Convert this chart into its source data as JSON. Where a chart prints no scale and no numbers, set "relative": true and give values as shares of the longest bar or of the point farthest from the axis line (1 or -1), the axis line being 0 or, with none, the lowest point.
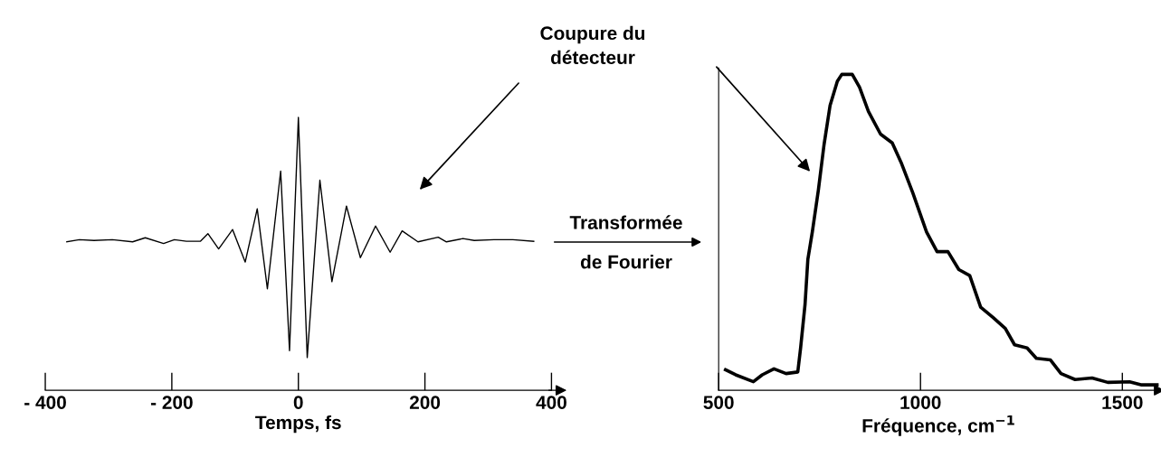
{
  "chart_data": [
    {
      "type": "line",
      "relative": true,
      "xlim": [
        -400,
        400
      ],
      "xticks": [
        {
          "value": -400,
          "label": "- 400"
        },
        {
          "value": -200,
          "label": "- 200"
        },
        0,
        200,
        400
      ],
      "xlabel": "Temps, fs",
      "tick_labels": "x",
      "series": [
        {
          "color": "#000000",
          "x": [
            -366,
            -346,
            -323,
            -294,
            -262,
            -242,
            -213,
            -196,
            -177,
            -155,
            -143,
            -126,
            -104,
            -84,
            -65,
            -49,
            -28,
            -14,
            0,
            14,
            34,
            53,
            76,
            98,
            122,
            145,
            164,
            189,
            221,
            234,
            260,
            278,
            309,
            339,
            372
          ],
          "values": [
            0.544,
            0.552,
            0.549,
            0.552,
            0.544,
            0.559,
            0.538,
            0.552,
            0.546,
            0.546,
            0.574,
            0.518,
            0.589,
            0.47,
            0.665,
            0.372,
            0.803,
            0.145,
            1.0,
            0.12,
            0.77,
            0.398,
            0.675,
            0.486,
            0.602,
            0.506,
            0.584,
            0.544,
            0.561,
            0.544,
            0.556,
            0.549,
            0.552,
            0.552,
            0.546
          ]
        }
      ],
      "annotations": [
        "Coupure du\ndétecteur",
        "Transformée\nde Fourier"
      ]
    },
    {
      "type": "line",
      "relative": true,
      "xlim": [
        500,
        1590
      ],
      "xticks": [
        500,
        1000,
        1500
      ],
      "xlabel": "Fréquence, cm$^{−1}$",
      "tick_labels": "x",
      "series": [
        {
          "color": "#000000",
          "x": [
            517,
            542,
            586,
            608,
            637,
            667,
            696,
            703,
            714,
            721,
            732,
            747,
            761,
            776,
            794,
            805,
            831,
            849,
            871,
            901,
            930,
            952,
            981,
            1015,
            1041,
            1068,
            1095,
            1122,
            1149,
            1180,
            1210,
            1233,
            1264,
            1287,
            1322,
            1348,
            1383,
            1425,
            1464,
            1518,
            1548,
            1587
          ],
          "values": [
            0.065,
            0.049,
            0.027,
            0.049,
            0.068,
            0.053,
            0.058,
            0.134,
            0.272,
            0.415,
            0.501,
            0.634,
            0.777,
            0.902,
            0.978,
            1.0,
            1.0,
            0.959,
            0.883,
            0.811,
            0.783,
            0.721,
            0.625,
            0.501,
            0.439,
            0.439,
            0.382,
            0.363,
            0.263,
            0.23,
            0.196,
            0.144,
            0.134,
            0.101,
            0.096,
            0.053,
            0.034,
            0.039,
            0.025,
            0.027,
            0.017,
            0.017
          ]
        }
      ]
    }
  ]
}
